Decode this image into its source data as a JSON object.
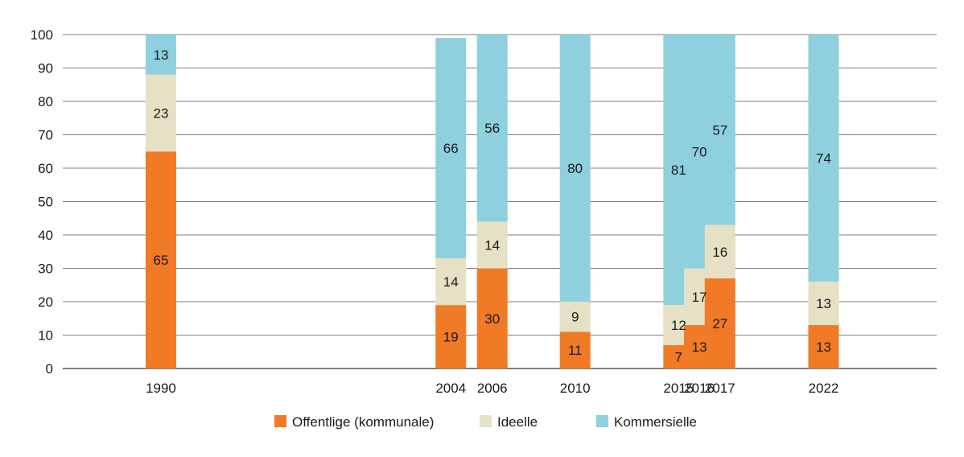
{
  "chart_data": {
    "type": "bar",
    "stacked": true,
    "x": [
      1990,
      2004,
      2006,
      2010,
      2015,
      2016,
      2017,
      2022
    ],
    "categories": [
      "1990",
      "2004",
      "2006",
      "2010",
      "2015",
      "2016",
      "2017",
      "2022"
    ],
    "series": [
      {
        "name": "Offentlige (kommunale)",
        "color": "#f07a26",
        "values": [
          65,
          19,
          30,
          11,
          7,
          13,
          27,
          13
        ]
      },
      {
        "name": "Ideelle",
        "color": "#e6e1c5",
        "values": [
          23,
          14,
          14,
          9,
          12,
          17,
          16,
          13
        ]
      },
      {
        "name": "Kommersielle",
        "color": "#8ed0de",
        "values": [
          13,
          66,
          56,
          80,
          81,
          70,
          57,
          74
        ]
      }
    ],
    "ylim": [
      0,
      100
    ],
    "yticks": [
      0,
      10,
      20,
      30,
      40,
      50,
      60,
      70,
      80,
      90,
      100
    ],
    "grid": true,
    "legend": "bottom"
  }
}
